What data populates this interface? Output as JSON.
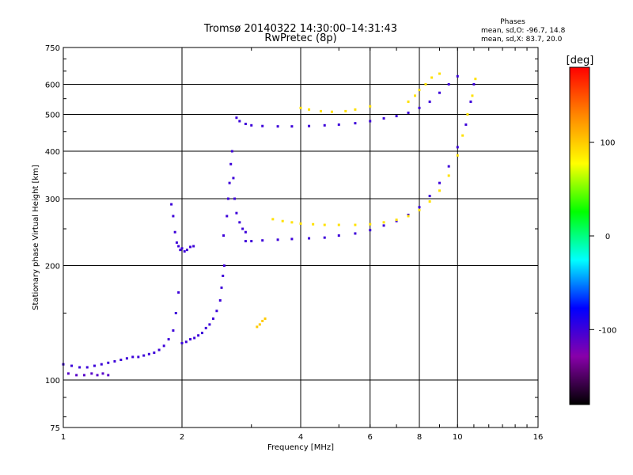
{
  "chart_data": {
    "type": "scatter",
    "title": "Tromsø 20140322 14:30:00–14:31:43",
    "subtitle": "RwPretec (8p)",
    "stats": {
      "heading": "Phases",
      "line_o": "mean, sd,O: -96.7, 14.8",
      "line_x": "mean, sd,X: 83.7, 20.0"
    },
    "xlabel": "Frequency [MHz]",
    "ylabel": "Stationary phase Virtual Height [km]",
    "x_scale": "log",
    "y_scale": "log",
    "xlim": [
      1,
      16
    ],
    "ylim": [
      75,
      750
    ],
    "x_ticks": [
      1,
      2,
      4,
      6,
      8,
      10,
      16
    ],
    "y_ticks": [
      75,
      100,
      200,
      300,
      400,
      500,
      600,
      750
    ],
    "grid": true,
    "colorbar": {
      "label": "[deg]",
      "range": [
        -180,
        180
      ],
      "ticks": [
        100,
        0,
        -100
      ],
      "colors": [
        "#ff0000",
        "#ff8800",
        "#ffff00",
        "#00ff00",
        "#00ffff",
        "#0000ff",
        "#8800aa",
        "#000000"
      ]
    },
    "series": [
      {
        "phase": -100,
        "x": [
          1.0,
          1.05,
          1.1,
          1.15,
          1.2,
          1.25,
          1.3,
          1.35,
          1.4,
          1.45,
          1.5,
          1.55,
          1.6,
          1.65,
          1.7,
          1.75,
          1.8,
          1.85,
          1.9,
          1.93,
          1.96,
          2.0,
          2.05,
          2.1,
          2.15,
          2.2,
          2.25,
          2.3,
          2.35,
          2.4,
          2.45,
          2.5,
          2.52,
          2.54,
          2.56
        ],
        "y": [
          110,
          109,
          108,
          108,
          109,
          110,
          111,
          112,
          113,
          114,
          115,
          115,
          116,
          117,
          118,
          120,
          123,
          128,
          135,
          150,
          170,
          125,
          126,
          128,
          129,
          131,
          133,
          137,
          140,
          145,
          152,
          162,
          175,
          188,
          200
        ]
      },
      {
        "phase": -110,
        "x": [
          1.03,
          1.08,
          1.13,
          1.18,
          1.22,
          1.26,
          1.3
        ],
        "y": [
          104,
          103,
          103,
          104,
          103,
          104,
          103
        ]
      },
      {
        "phase": -100,
        "x": [
          1.88,
          1.9,
          1.92,
          1.94,
          1.96,
          1.98,
          2.0,
          2.03,
          2.06,
          2.1,
          2.14
        ],
        "y": [
          290,
          270,
          245,
          230,
          225,
          220,
          222,
          218,
          220,
          224,
          225
        ]
      },
      {
        "phase": -100,
        "x": [
          2.55,
          2.6,
          2.62,
          2.64,
          2.66,
          2.68,
          2.7,
          2.72,
          2.75,
          2.8,
          2.85,
          2.9
        ],
        "y": [
          240,
          270,
          300,
          330,
          370,
          400,
          340,
          300,
          275,
          260,
          250,
          245
        ]
      },
      {
        "phase": -100,
        "x": [
          2.9,
          3.0,
          3.2,
          3.5,
          3.8,
          4.2,
          4.6,
          5.0,
          5.5,
          6.0,
          6.5,
          7.0,
          7.5,
          8.0,
          8.5,
          9.0,
          9.5,
          10.0,
          10.5,
          10.8,
          11.0
        ],
        "y": [
          232,
          232,
          233,
          234,
          235,
          236,
          237,
          240,
          243,
          248,
          255,
          262,
          272,
          285,
          305,
          330,
          365,
          410,
          470,
          540,
          600
        ]
      },
      {
        "phase": -100,
        "x": [
          2.75,
          2.8,
          2.9,
          3.0,
          3.2,
          3.5,
          3.8,
          4.2,
          4.6,
          5.0,
          5.5,
          6.0,
          6.5,
          7.0,
          7.5,
          8.0,
          8.5,
          9.0,
          9.5,
          10.0
        ],
        "y": [
          490,
          480,
          472,
          468,
          466,
          465,
          465,
          466,
          468,
          470,
          474,
          480,
          488,
          495,
          505,
          520,
          540,
          570,
          600,
          630
        ]
      },
      {
        "phase": 90,
        "x": [
          3.4,
          3.6,
          3.8,
          4.0,
          4.3,
          4.6,
          5.0,
          5.5,
          6.0,
          6.5,
          7.0,
          7.5,
          8.0,
          8.5,
          9.0,
          9.5,
          10.0,
          10.3,
          10.6,
          10.9,
          11.1
        ],
        "y": [
          265,
          262,
          260,
          258,
          257,
          256,
          256,
          256,
          257,
          260,
          264,
          270,
          280,
          295,
          315,
          345,
          390,
          440,
          500,
          560,
          620
        ]
      },
      {
        "phase": 90,
        "x": [
          4.0,
          4.2,
          4.5,
          4.8,
          5.2,
          5.5,
          6.0
        ],
        "y": [
          520,
          515,
          510,
          508,
          510,
          515,
          525
        ]
      },
      {
        "phase": 90,
        "x": [
          7.5,
          7.8,
          8.0,
          8.3,
          8.6,
          9.0
        ],
        "y": [
          540,
          560,
          580,
          600,
          625,
          640
        ]
      },
      {
        "phase": 100,
        "x": [
          3.1,
          3.15,
          3.2,
          3.25
        ],
        "y": [
          138,
          140,
          143,
          145
        ]
      }
    ]
  }
}
